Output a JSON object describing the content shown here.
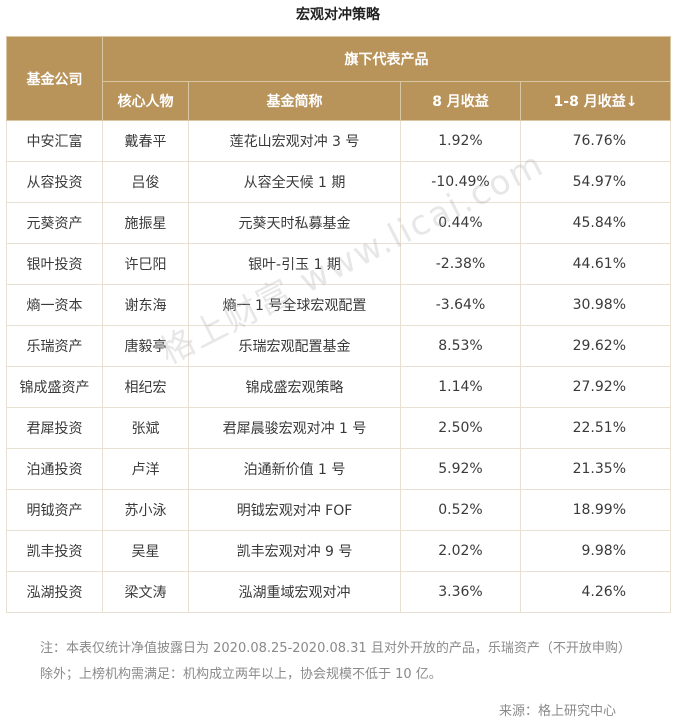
{
  "title": "宏观对冲策略",
  "header": {
    "company": "基金公司",
    "group": "旗下代表产品",
    "manager": "核心人物",
    "fund": "基金简称",
    "ret_aug": "8 月收益",
    "ret_ytd": "1-8 月收益↓"
  },
  "rows": [
    {
      "company": "中安汇富",
      "manager": "戴春平",
      "fund": "莲花山宏观对冲 3 号",
      "ret_aug": "1.92%",
      "ret_ytd": "76.76%"
    },
    {
      "company": "从容投资",
      "manager": "吕俊",
      "fund": "从容全天候 1 期",
      "ret_aug": "-10.49%",
      "ret_ytd": "54.97%"
    },
    {
      "company": "元葵资产",
      "manager": "施振星",
      "fund": "元葵天时私募基金",
      "ret_aug": "0.44%",
      "ret_ytd": "45.84%"
    },
    {
      "company": "银叶投资",
      "manager": "许巳阳",
      "fund": "银叶-引玉 1 期",
      "ret_aug": "-2.38%",
      "ret_ytd": "44.61%"
    },
    {
      "company": "熵一资本",
      "manager": "谢东海",
      "fund": "熵一 1 号全球宏观配置",
      "ret_aug": "-3.64%",
      "ret_ytd": "30.98%"
    },
    {
      "company": "乐瑞资产",
      "manager": "唐毅亭",
      "fund": "乐瑞宏观配置基金",
      "ret_aug": "8.53%",
      "ret_ytd": "29.62%"
    },
    {
      "company": "锦成盛资产",
      "manager": "相纪宏",
      "fund": "锦成盛宏观策略",
      "ret_aug": "1.14%",
      "ret_ytd": "27.92%"
    },
    {
      "company": "君犀投资",
      "manager": "张斌",
      "fund": "君犀晨骏宏观对冲 1 号",
      "ret_aug": "2.50%",
      "ret_ytd": "22.51%"
    },
    {
      "company": "泊通投资",
      "manager": "卢洋",
      "fund": "泊通新价值 1 号",
      "ret_aug": "5.92%",
      "ret_ytd": "21.35%"
    },
    {
      "company": "明钺资产",
      "manager": "苏小泳",
      "fund": "明钺宏观对冲 FOF",
      "ret_aug": "0.52%",
      "ret_ytd": "18.99%"
    },
    {
      "company": "凯丰投资",
      "manager": "吴星",
      "fund": "凯丰宏观对冲 9 号",
      "ret_aug": "2.02%",
      "ret_ytd": "9.98%"
    },
    {
      "company": "泓湖投资",
      "manager": "梁文涛",
      "fund": "泓湖重域宏观对冲",
      "ret_aug": "3.36%",
      "ret_ytd": "4.26%"
    }
  ],
  "watermark": "格上财富 www.licai.com",
  "note": "注：本表仅统计净值披露日为 2020.08.25-2020.08.31 且对外开放的产品，乐瑞资产（不开放申购）除外；上榜机构需满足：机构成立两年以上，协会规模不低于 10 亿。",
  "source": "来源：格上研究中心",
  "colors": {
    "header_bg": "#b8935a",
    "header_text": "#ffffff",
    "border": "#e7e0d3"
  }
}
